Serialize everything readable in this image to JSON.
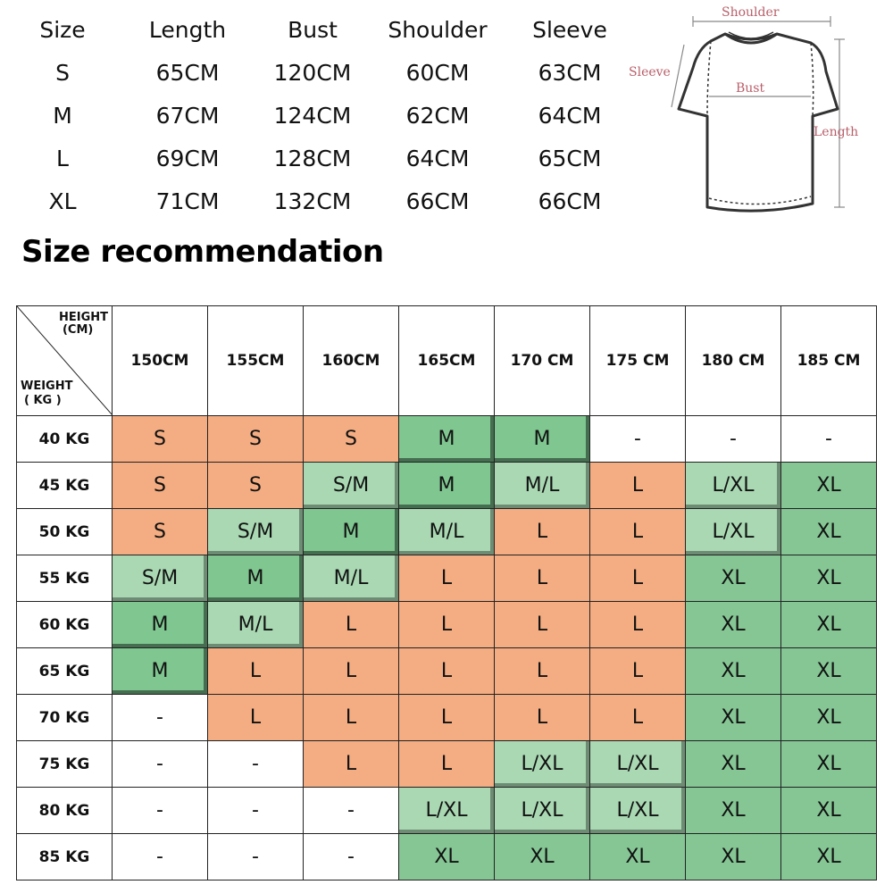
{
  "size_chart": {
    "headers": [
      "Size",
      "Length",
      "Bust",
      "Shoulder",
      "Sleeve"
    ],
    "rows": [
      [
        "S",
        "65CM",
        "120CM",
        "60CM",
        "63CM"
      ],
      [
        "M",
        "67CM",
        "124CM",
        "62CM",
        "64CM"
      ],
      [
        "L",
        "69CM",
        "128CM",
        "64CM",
        "65CM"
      ],
      [
        "XL",
        "71CM",
        "132CM",
        "66CM",
        "66CM"
      ]
    ]
  },
  "diagram": {
    "shoulder": "Shoulder",
    "sleeve": "Sleeve",
    "bust": "Bust",
    "length": "Length"
  },
  "recommendation": {
    "title": "Size recommendation",
    "corner_height": [
      "HEIGHT",
      "(CM)"
    ],
    "corner_weight": [
      "WEIGHT",
      "( KG )"
    ],
    "heights": [
      "150CM",
      "155CM",
      "160CM",
      "165CM",
      "170 CM",
      "175 CM",
      "180 CM",
      "185 CM"
    ],
    "weights": [
      "40 KG",
      "45 KG",
      "50 KG",
      "55 KG",
      "60 KG",
      "65 KG",
      "70 KG",
      "75 KG",
      "80 KG",
      "85 KG"
    ],
    "cells": [
      [
        "S",
        "S",
        "S",
        "M",
        "M",
        "-",
        "-",
        "-"
      ],
      [
        "S",
        "S",
        "S/M",
        "M",
        "M/L",
        "L",
        "L/XL",
        "XL"
      ],
      [
        "S",
        "S/M",
        "M",
        "M/L",
        "L",
        "L",
        "L/XL",
        "XL"
      ],
      [
        "S/M",
        "M",
        "M/L",
        "L",
        "L",
        "L",
        "XL",
        "XL"
      ],
      [
        "M",
        "M/L",
        "L",
        "L",
        "L",
        "L",
        "XL",
        "XL"
      ],
      [
        "M",
        "L",
        "L",
        "L",
        "L",
        "L",
        "XL",
        "XL"
      ],
      [
        "-",
        "L",
        "L",
        "L",
        "L",
        "L",
        "XL",
        "XL"
      ],
      [
        "-",
        "-",
        "L",
        "L",
        "L/XL",
        "L/XL",
        "XL",
        "XL"
      ],
      [
        "-",
        "-",
        "-",
        "L/XL",
        "L/XL",
        "L/XL",
        "XL",
        "XL"
      ],
      [
        "-",
        "-",
        "-",
        "XL",
        "XL",
        "XL",
        "XL",
        "XL"
      ]
    ],
    "colors": {
      "orange": "#f4ad82",
      "light_green": "#a9d8b3",
      "mid_green": "#7fc690",
      "xl_green": "#85c694"
    }
  }
}
